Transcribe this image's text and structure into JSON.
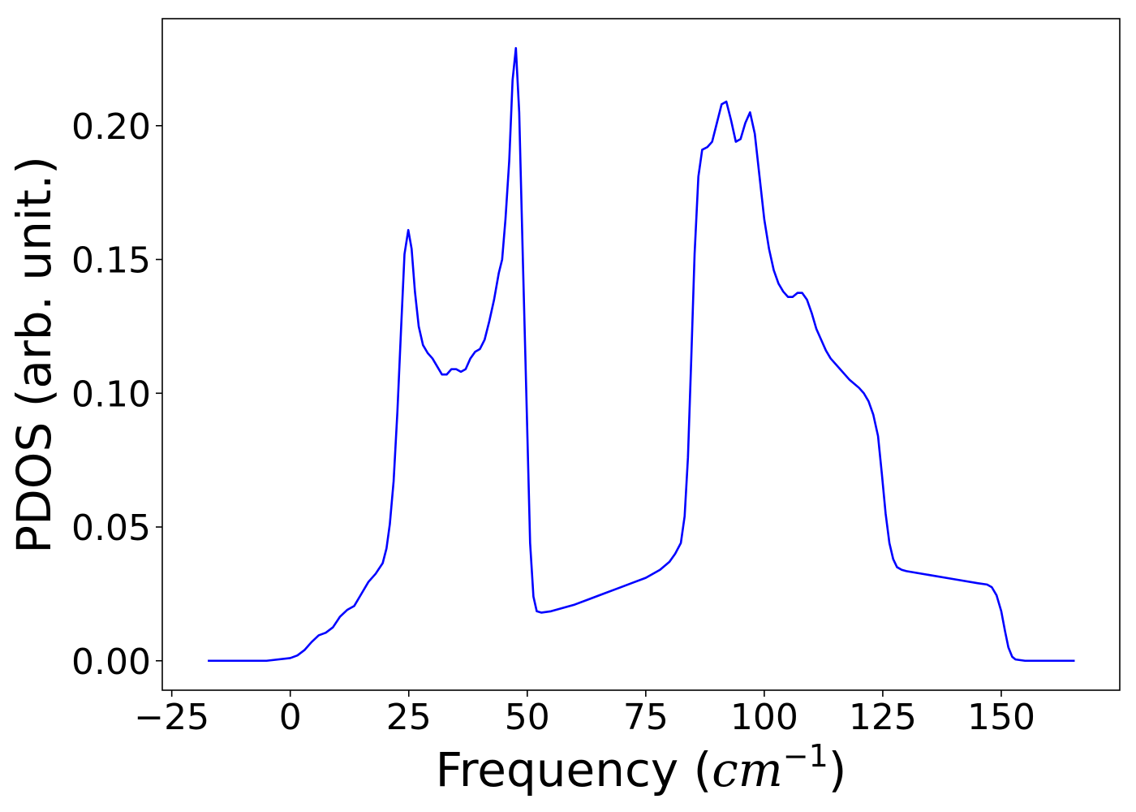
{
  "chart_data": {
    "type": "line",
    "title": "",
    "xlabel_prefix": "Frequency (",
    "xlabel_unit": "cm",
    "xlabel_exponent": "−1",
    "xlabel_suffix": ")",
    "ylabel": "PDOS (arb. unit.)",
    "xlim": [
      -27,
      175
    ],
    "ylim": [
      -0.011,
      0.24
    ],
    "x_ticks": [
      -25,
      0,
      25,
      50,
      75,
      100,
      125,
      150
    ],
    "x_tick_labels": [
      "−25",
      "0",
      "25",
      "50",
      "75",
      "100",
      "125",
      "150"
    ],
    "y_ticks": [
      0.0,
      0.05,
      0.1,
      0.15,
      0.2
    ],
    "y_tick_labels": [
      "0.00",
      "0.05",
      "0.10",
      "0.15",
      "0.20"
    ],
    "grid": false,
    "series": [
      {
        "color": "#0000ff",
        "points": [
          [
            -17.4,
            0.0
          ],
          [
            -5,
            0.0
          ],
          [
            0,
            0.001
          ],
          [
            1.5,
            0.002
          ],
          [
            3,
            0.004
          ],
          [
            4.5,
            0.007
          ],
          [
            6,
            0.0095
          ],
          [
            7.5,
            0.0105
          ],
          [
            9,
            0.0125
          ],
          [
            10.5,
            0.0165
          ],
          [
            12,
            0.019
          ],
          [
            13.5,
            0.0205
          ],
          [
            15,
            0.025
          ],
          [
            16.5,
            0.0295
          ],
          [
            18,
            0.0325
          ],
          [
            19.5,
            0.0365
          ],
          [
            20.3,
            0.042
          ],
          [
            21,
            0.051
          ],
          [
            21.8,
            0.067
          ],
          [
            22.6,
            0.093
          ],
          [
            23.4,
            0.125
          ],
          [
            24.1,
            0.152
          ],
          [
            24.9,
            0.161
          ],
          [
            25.6,
            0.154
          ],
          [
            26.3,
            0.138
          ],
          [
            27.1,
            0.125
          ],
          [
            28,
            0.118
          ],
          [
            29,
            0.115
          ],
          [
            30,
            0.113
          ],
          [
            31,
            0.11
          ],
          [
            32,
            0.107
          ],
          [
            33,
            0.107
          ],
          [
            34,
            0.109
          ],
          [
            35,
            0.109
          ],
          [
            36,
            0.108
          ],
          [
            37,
            0.109
          ],
          [
            38,
            0.113
          ],
          [
            39,
            0.1155
          ],
          [
            40,
            0.1165
          ],
          [
            41,
            0.12
          ],
          [
            42,
            0.127
          ],
          [
            43,
            0.135
          ],
          [
            44,
            0.145
          ],
          [
            44.7,
            0.15
          ],
          [
            45.4,
            0.165
          ],
          [
            46.2,
            0.187
          ],
          [
            46.9,
            0.217
          ],
          [
            47.6,
            0.229
          ],
          [
            48.3,
            0.205
          ],
          [
            49.1,
            0.148
          ],
          [
            49.9,
            0.093
          ],
          [
            50.6,
            0.044
          ],
          [
            51.3,
            0.024
          ],
          [
            52,
            0.0185
          ],
          [
            53,
            0.018
          ],
          [
            55,
            0.0185
          ],
          [
            57,
            0.0195
          ],
          [
            60,
            0.021
          ],
          [
            63,
            0.023
          ],
          [
            66,
            0.025
          ],
          [
            69,
            0.027
          ],
          [
            72,
            0.029
          ],
          [
            75,
            0.031
          ],
          [
            78,
            0.034
          ],
          [
            80,
            0.037
          ],
          [
            81.2,
            0.04
          ],
          [
            82.4,
            0.044
          ],
          [
            83.2,
            0.054
          ],
          [
            83.9,
            0.076
          ],
          [
            84.6,
            0.113
          ],
          [
            85.3,
            0.152
          ],
          [
            86.1,
            0.181
          ],
          [
            86.9,
            0.191
          ],
          [
            88,
            0.192
          ],
          [
            89,
            0.194
          ],
          [
            90,
            0.201
          ],
          [
            91,
            0.208
          ],
          [
            92,
            0.209
          ],
          [
            93,
            0.202
          ],
          [
            94,
            0.194
          ],
          [
            95,
            0.195
          ],
          [
            96,
            0.201
          ],
          [
            97,
            0.205
          ],
          [
            98,
            0.197
          ],
          [
            99,
            0.181
          ],
          [
            100,
            0.165
          ],
          [
            101,
            0.154
          ],
          [
            102,
            0.146
          ],
          [
            103,
            0.141
          ],
          [
            104,
            0.138
          ],
          [
            105,
            0.136
          ],
          [
            106,
            0.136
          ],
          [
            107,
            0.1375
          ],
          [
            108,
            0.1375
          ],
          [
            109,
            0.135
          ],
          [
            110,
            0.13
          ],
          [
            111,
            0.124
          ],
          [
            112,
            0.12
          ],
          [
            113,
            0.116
          ],
          [
            114,
            0.113
          ],
          [
            116,
            0.109
          ],
          [
            118,
            0.105
          ],
          [
            120,
            0.102
          ],
          [
            121,
            0.1
          ],
          [
            122,
            0.097
          ],
          [
            123,
            0.092
          ],
          [
            124,
            0.084
          ],
          [
            124.8,
            0.07
          ],
          [
            125.6,
            0.055
          ],
          [
            126.4,
            0.044
          ],
          [
            127.2,
            0.038
          ],
          [
            128,
            0.035
          ],
          [
            129,
            0.034
          ],
          [
            130,
            0.0335
          ],
          [
            135,
            0.032
          ],
          [
            140,
            0.0305
          ],
          [
            145,
            0.029
          ],
          [
            147,
            0.0285
          ],
          [
            148,
            0.0275
          ],
          [
            149,
            0.0245
          ],
          [
            150,
            0.0185
          ],
          [
            150.8,
            0.011
          ],
          [
            151.5,
            0.005
          ],
          [
            152.3,
            0.0015
          ],
          [
            153,
            0.0005
          ],
          [
            155,
            0.0
          ],
          [
            165.5,
            0.0
          ]
        ]
      }
    ]
  }
}
